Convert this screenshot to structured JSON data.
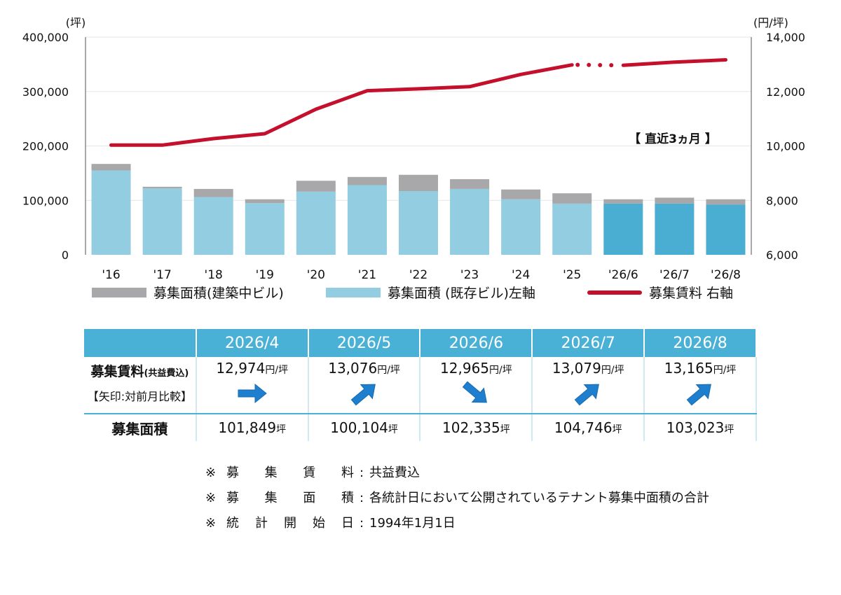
{
  "chart_data": {
    "type": "bar+line",
    "categories": [
      "'16",
      "'17",
      "'18",
      "'19",
      "'20",
      "'21",
      "'22",
      "'23",
      "'24",
      "'25",
      "'26/6",
      "'26/7",
      "'26/8"
    ],
    "series": [
      {
        "name": "募集面積(既存ビル)左軸",
        "type": "stacked-bar",
        "axis": "left",
        "values": [
          155000,
          122000,
          106000,
          95000,
          116000,
          128000,
          117000,
          121000,
          102000,
          94000,
          94000,
          94000,
          92000
        ],
        "colors": [
          "#92cde1",
          "#92cde1",
          "#92cde1",
          "#92cde1",
          "#92cde1",
          "#92cde1",
          "#92cde1",
          "#92cde1",
          "#92cde1",
          "#92cde1",
          "#4aaed3",
          "#4aaed3",
          "#4aaed3"
        ]
      },
      {
        "name": "募集面積(建築中ビル)",
        "type": "stacked-bar",
        "axis": "left",
        "values": [
          12000,
          3000,
          15000,
          7000,
          20000,
          15000,
          30000,
          18000,
          18000,
          19000,
          8000,
          11000,
          10000
        ]
      },
      {
        "name": "募集賃料 右軸",
        "type": "line",
        "axis": "right",
        "values": [
          10030,
          10030,
          10270,
          10450,
          11350,
          12030,
          12100,
          12180,
          12630,
          12980,
          12965,
          13079,
          13165
        ]
      }
    ],
    "y_left": {
      "unit": "(坪)",
      "min": 0,
      "max": 400000,
      "ticks": [
        "0",
        "100,000",
        "200,000",
        "300,000",
        "400,000"
      ]
    },
    "y_right": {
      "unit": "(円/坪)",
      "min": 6000,
      "max": 14000,
      "ticks": [
        "6,000",
        "8,000",
        "10,000",
        "12,000",
        "14,000"
      ]
    },
    "annotation": "【 直近3ヵ月 】",
    "colors": {
      "bar_new": "#a8a8ab",
      "bar_existing": "#92cde1",
      "bar_recent": "#4aaed3",
      "line": "#c4102c"
    }
  },
  "legend": {
    "new_building": "募集面積(建築中ビル)",
    "existing": "募集面積 (既存ビル)左軸",
    "rent": "募集賃料 右軸"
  },
  "table": {
    "months": [
      "2026/4",
      "2026/5",
      "2026/6",
      "2026/7",
      "2026/8"
    ],
    "rent_title": "募集賃料",
    "rent_title_note": "(共益費込)",
    "rent_subtitle": "【矢印:対前月比較】",
    "rent_values": [
      "12,974",
      "13,076",
      "12,965",
      "13,079",
      "13,165"
    ],
    "rent_unit": "円/坪",
    "rent_trend": [
      "flat",
      "up",
      "down",
      "up",
      "up"
    ],
    "area_title": "募集面積",
    "area_values": [
      "101,849",
      "100,104",
      "102,335",
      "104,746",
      "103,023"
    ],
    "area_unit": "坪"
  },
  "notes": [
    {
      "label": [
        "募",
        "集",
        "賃",
        "料"
      ],
      "text": "共益費込"
    },
    {
      "label": [
        "募",
        "集",
        "面",
        "積"
      ],
      "text": "各統計日において公開されているテナント募集中面積の合計"
    },
    {
      "label": [
        "統",
        "計",
        "開",
        "始",
        "日"
      ],
      "text": "1994年1月1日"
    }
  ],
  "note_mark": "※",
  "note_colon": ":"
}
